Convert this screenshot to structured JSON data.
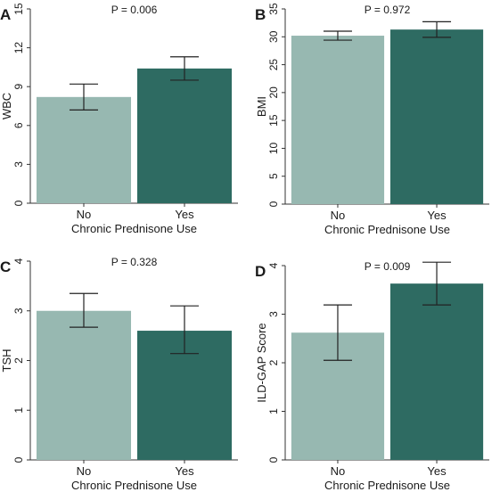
{
  "chart_data": [
    {
      "type": "bar",
      "panel": "A",
      "annotation": "P = 0.006",
      "categories": [
        "No",
        "Yes"
      ],
      "values": [
        8.2,
        10.4
      ],
      "error_low": [
        7.2,
        9.5
      ],
      "error_high": [
        9.2,
        11.3
      ],
      "xlabel": "Chronic Prednisone Use",
      "ylabel": "WBC",
      "ylim": [
        0,
        15
      ],
      "yticks": [
        0,
        3,
        6,
        9,
        12,
        15
      ],
      "ytick_labels": [
        "0",
        "3",
        "6",
        "9",
        "12",
        "15"
      ],
      "colors": [
        "#97b8b1",
        "#2e6b62"
      ],
      "grid": false
    },
    {
      "type": "bar",
      "panel": "B",
      "annotation": "P = 0.972",
      "categories": [
        "No",
        "Yes"
      ],
      "values": [
        30.2,
        31.3
      ],
      "error_low": [
        29.4,
        29.9
      ],
      "error_high": [
        31.0,
        32.7
      ],
      "xlabel": "Chronic Prednisone Use",
      "ylabel": "BMI",
      "ylim": [
        0,
        35
      ],
      "yticks": [
        0,
        5,
        10,
        15,
        20,
        25,
        30,
        35
      ],
      "ytick_labels": [
        "0",
        "5",
        "10",
        "15",
        "20",
        "25",
        "30",
        "35"
      ],
      "colors": [
        "#97b8b1",
        "#2e6b62"
      ],
      "grid": false
    },
    {
      "type": "bar",
      "panel": "C",
      "annotation": "P = 0.328",
      "categories": [
        "No",
        "Yes"
      ],
      "values": [
        3.0,
        2.6
      ],
      "error_low": [
        2.67,
        2.14
      ],
      "error_high": [
        3.35,
        3.1
      ],
      "xlabel": "Chronic Prednisone Use",
      "ylabel": "TSH",
      "ylim": [
        0,
        4
      ],
      "yticks": [
        0,
        1,
        2,
        3,
        4
      ],
      "ytick_labels": [
        "0",
        "1",
        "2",
        "3",
        "4"
      ],
      "colors": [
        "#97b8b1",
        "#2e6b62"
      ],
      "grid": false
    },
    {
      "type": "bar",
      "panel": "D",
      "annotation": "P = 0.009",
      "categories": [
        "No",
        "Yes"
      ],
      "values": [
        2.62,
        3.63
      ],
      "error_low": [
        2.05,
        3.19
      ],
      "error_high": [
        3.19,
        4.07
      ],
      "xlabel": "Chronic Prednisone Use",
      "ylabel": "ILD-GAP Score",
      "ylim": [
        0,
        4
      ],
      "yticks": [
        0,
        1,
        2,
        3,
        4
      ],
      "ytick_labels": [
        "0",
        "1",
        "2",
        "3",
        "4"
      ],
      "colors": [
        "#97b8b1",
        "#2e6b62"
      ],
      "grid": false
    }
  ]
}
